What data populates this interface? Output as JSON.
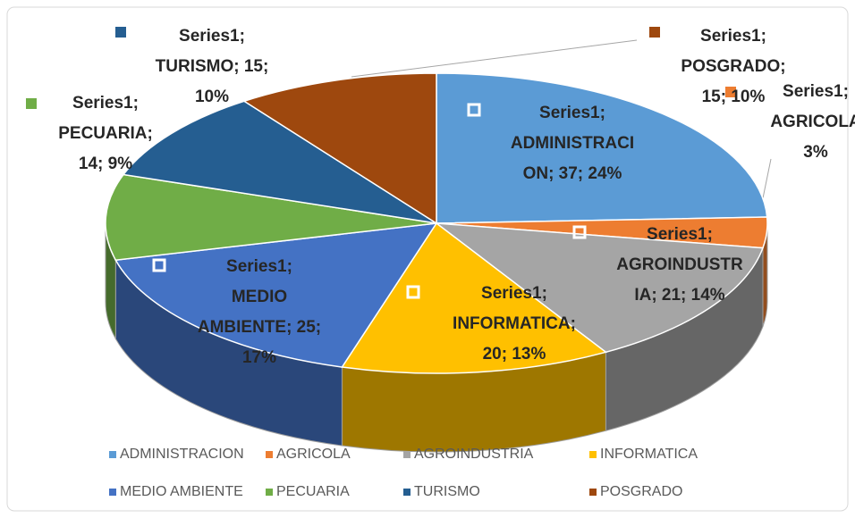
{
  "chart_data": {
    "type": "pie",
    "series_name": "Series1",
    "categories": [
      "ADMINISTRACION",
      "AGRICOLA",
      "AGROINDUSTRIA",
      "INFORMATICA",
      "MEDIO AMBIENTE",
      "PECUARIA",
      "TURISMO",
      "POSGRADO"
    ],
    "values": [
      37,
      5,
      21,
      20,
      25,
      14,
      15,
      15
    ],
    "value_labels": [
      [
        "Series1;",
        "ADMINISTRACI",
        "ON; 37; 24%"
      ],
      [
        "Series1;",
        "AGRICOLA",
        "3%"
      ],
      [
        "Series1;",
        "AGROINDUSTR",
        "IA; 21; 14%"
      ],
      [
        "Series1;",
        "INFORMATICA;",
        "20; 13%"
      ],
      [
        "Series1;",
        "MEDIO",
        "AMBIENTE; 25;",
        "17%"
      ],
      [
        "Series1;",
        "PECUARIA;",
        "14; 9%"
      ],
      [
        "Series1;",
        "TURISMO; 15;",
        "10%"
      ],
      [
        "Series1;",
        "POSGRADO;",
        "15; 10%"
      ]
    ],
    "colors": [
      "#5b9bd5",
      "#ed7d31",
      "#a5a5a5",
      "#ffc000",
      "#4472c4",
      "#70ad47",
      "#255e91",
      "#9e480e"
    ],
    "legend": "bottom"
  }
}
